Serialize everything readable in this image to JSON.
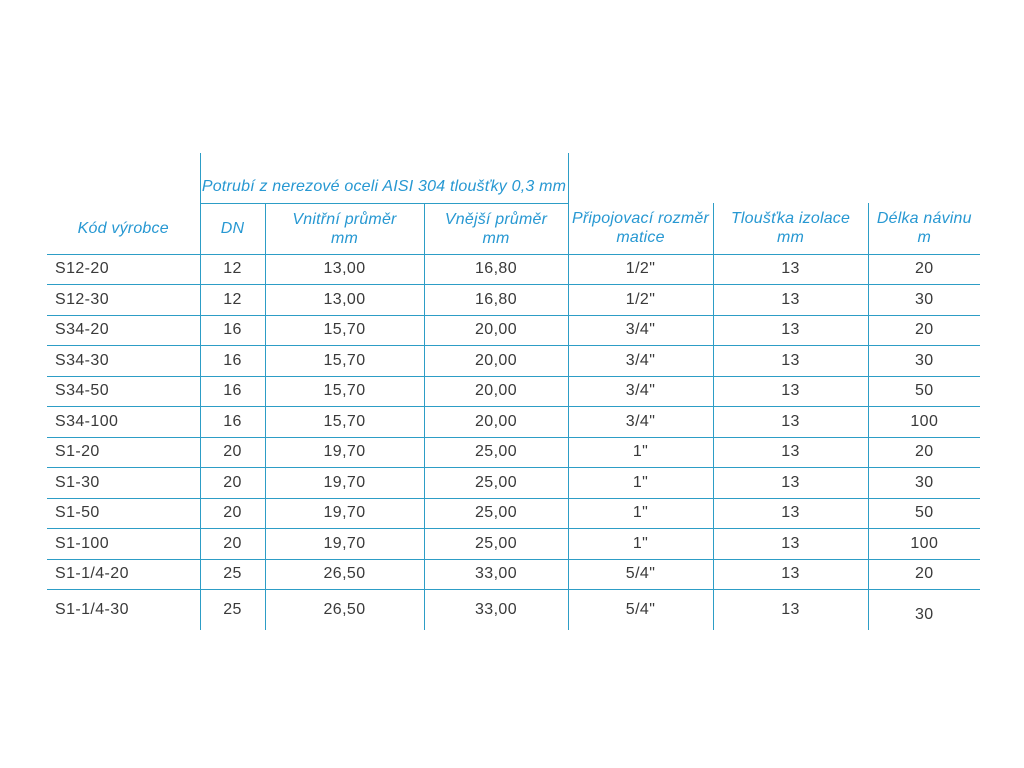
{
  "colors": {
    "border": "#2d9dc6",
    "header_text": "#2798d2",
    "body_text": "#3a3a3a"
  },
  "table": {
    "span_header": "Potrubí z nerezové oceli AISI 304 tloušťky 0,3 mm",
    "columns": [
      {
        "line1": "Kód výrobce",
        "line2": ""
      },
      {
        "line1": "DN",
        "line2": ""
      },
      {
        "line1": "Vnitřní průměr",
        "line2": "mm"
      },
      {
        "line1": "Vnější průměr",
        "line2": "mm"
      },
      {
        "line1": "Připojovací rozměr",
        "line2": "matice"
      },
      {
        "line1": "Tloušťka izolace",
        "line2": "mm"
      },
      {
        "line1": "Délka návinu",
        "line2": "m"
      }
    ],
    "rows": [
      [
        "S12-20",
        "12",
        "13,00",
        "16,80",
        "1/2\"",
        "13",
        "20"
      ],
      [
        "S12-30",
        "12",
        "13,00",
        "16,80",
        "1/2\"",
        "13",
        "30"
      ],
      [
        "S34-20",
        "16",
        "15,70",
        "20,00",
        "3/4\"",
        "13",
        "20"
      ],
      [
        "S34-30",
        "16",
        "15,70",
        "20,00",
        "3/4\"",
        "13",
        "30"
      ],
      [
        "S34-50",
        "16",
        "15,70",
        "20,00",
        "3/4\"",
        "13",
        "50"
      ],
      [
        "S34-100",
        "16",
        "15,70",
        "20,00",
        "3/4\"",
        "13",
        "100"
      ],
      [
        "S1-20",
        "20",
        "19,70",
        "25,00",
        "1\"",
        "13",
        "20"
      ],
      [
        "S1-30",
        "20",
        "19,70",
        "25,00",
        "1\"",
        "13",
        "30"
      ],
      [
        "S1-50",
        "20",
        "19,70",
        "25,00",
        "1\"",
        "13",
        "50"
      ],
      [
        "S1-100",
        "20",
        "19,70",
        "25,00",
        "1\"",
        "13",
        "100"
      ],
      [
        "S1-1/4-20",
        "25",
        "26,50",
        "33,00",
        "5/4\"",
        "13",
        "20"
      ],
      [
        "S1-1/4-30",
        "25",
        "26,50",
        "33,00",
        "5/4\"",
        "13",
        "30"
      ]
    ]
  }
}
